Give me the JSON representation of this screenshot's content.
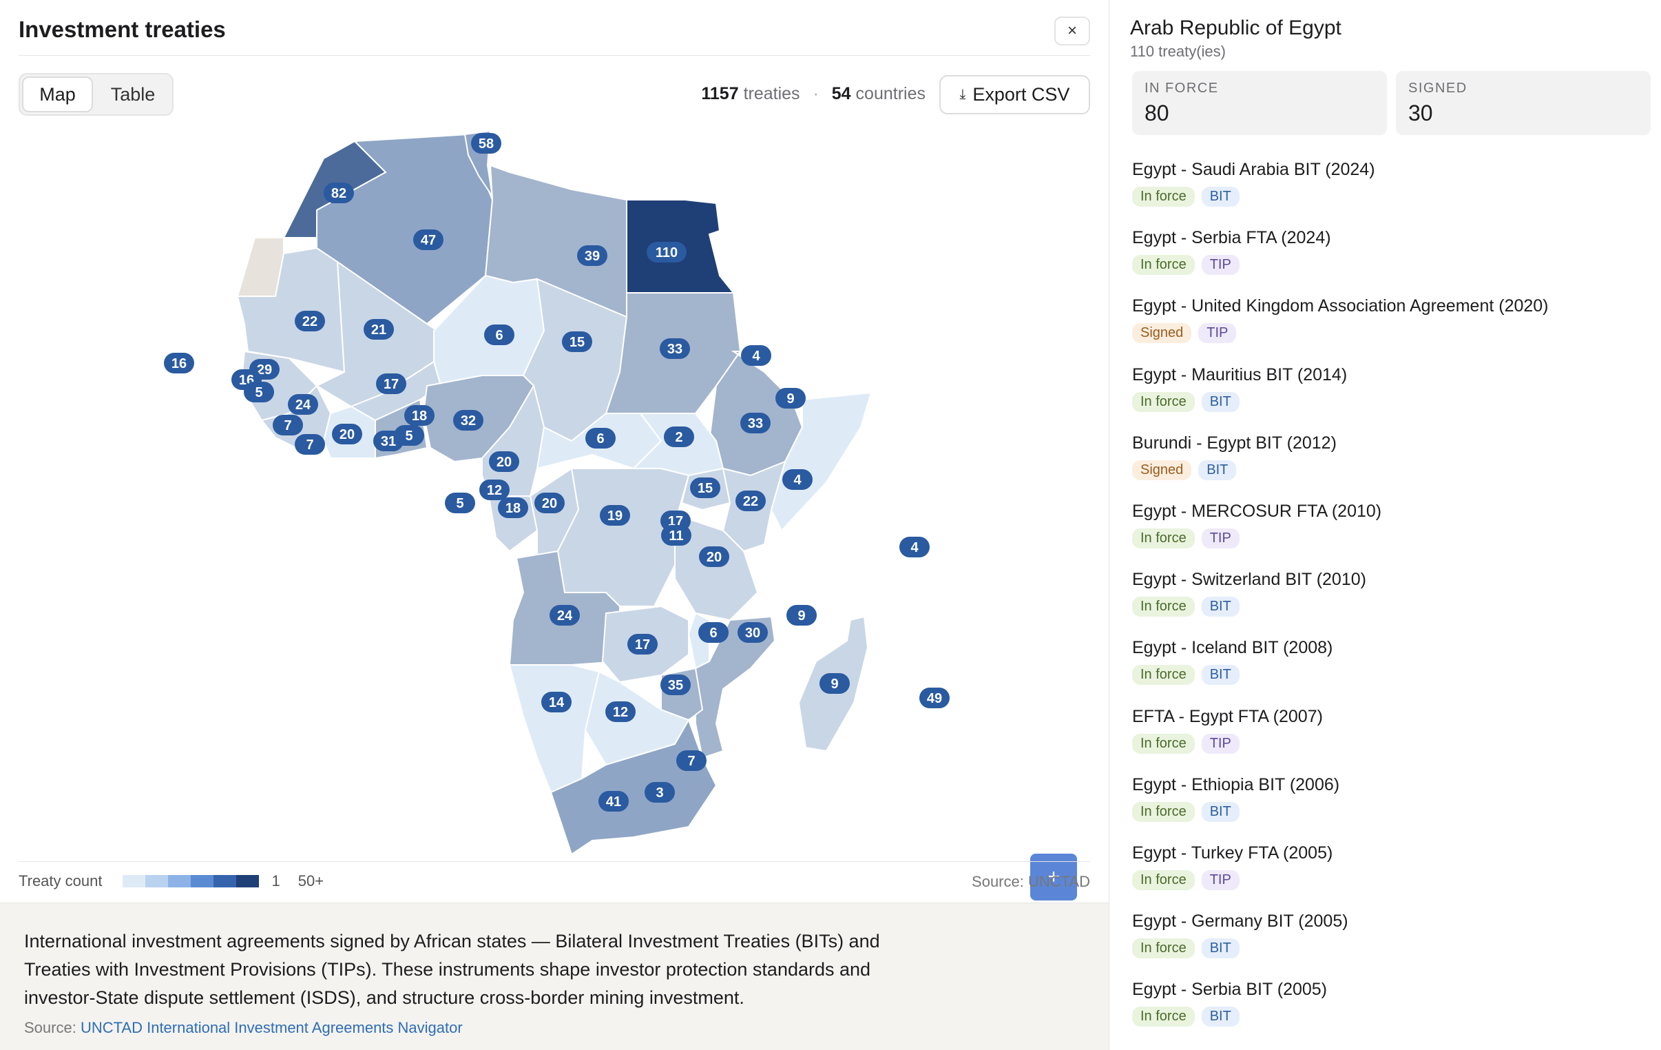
{
  "header": {
    "title": "Investment treaties"
  },
  "view_toggle": {
    "map": "Map",
    "table": "Table"
  },
  "stats": {
    "treaties_count": "1157",
    "treaties_label": "treaties",
    "separator": "·",
    "countries_count": "54",
    "countries_label": "countries"
  },
  "export": {
    "label": "Export CSV",
    "icon": "download-icon"
  },
  "map": {
    "zoom_in": "+",
    "zoom_out": "−",
    "labels": [
      {
        "id": "morocco",
        "value": "82"
      },
      {
        "id": "algeria",
        "value": "47"
      },
      {
        "id": "tunisia",
        "value": "58"
      },
      {
        "id": "libya",
        "value": "39"
      },
      {
        "id": "egypt",
        "value": "110"
      },
      {
        "id": "mauritania",
        "value": "22"
      },
      {
        "id": "mali",
        "value": "21"
      },
      {
        "id": "niger",
        "value": "6"
      },
      {
        "id": "chad",
        "value": "15"
      },
      {
        "id": "sudan",
        "value": "33"
      },
      {
        "id": "eritrea",
        "value": "4"
      },
      {
        "id": "cabo-verde",
        "value": "16"
      },
      {
        "id": "senegal",
        "value": "29"
      },
      {
        "id": "gambia",
        "value": "16"
      },
      {
        "id": "guinea-bissau",
        "value": "5"
      },
      {
        "id": "burkina-faso",
        "value": "17"
      },
      {
        "id": "guinea",
        "value": "24"
      },
      {
        "id": "sierra-leone",
        "value": "7"
      },
      {
        "id": "liberia",
        "value": "7"
      },
      {
        "id": "cote-divoire",
        "value": "20"
      },
      {
        "id": "ghana",
        "value": "31"
      },
      {
        "id": "togo",
        "value": "5"
      },
      {
        "id": "benin",
        "value": "18"
      },
      {
        "id": "nigeria",
        "value": "32"
      },
      {
        "id": "djibouti",
        "value": "9"
      },
      {
        "id": "ethiopia",
        "value": "33"
      },
      {
        "id": "central-african-republic",
        "value": "6"
      },
      {
        "id": "south-sudan",
        "value": "2"
      },
      {
        "id": "cameroon",
        "value": "20"
      },
      {
        "id": "somalia",
        "value": "4"
      },
      {
        "id": "uganda",
        "value": "15"
      },
      {
        "id": "kenya",
        "value": "22"
      },
      {
        "id": "sao-tome",
        "value": "5"
      },
      {
        "id": "equatorial-guinea",
        "value": "12"
      },
      {
        "id": "gabon",
        "value": "18"
      },
      {
        "id": "congo",
        "value": "20"
      },
      {
        "id": "dr-congo",
        "value": "19"
      },
      {
        "id": "rwanda",
        "value": "17"
      },
      {
        "id": "burundi",
        "value": "11"
      },
      {
        "id": "seychelles",
        "value": "4"
      },
      {
        "id": "tanzania",
        "value": "20"
      },
      {
        "id": "angola",
        "value": "24"
      },
      {
        "id": "comoros",
        "value": "9"
      },
      {
        "id": "malawi",
        "value": "6"
      },
      {
        "id": "mozambique",
        "value": "30"
      },
      {
        "id": "zambia",
        "value": "17"
      },
      {
        "id": "zimbabwe",
        "value": "35"
      },
      {
        "id": "madagascar",
        "value": "9"
      },
      {
        "id": "mauritius",
        "value": "49"
      },
      {
        "id": "namibia",
        "value": "14"
      },
      {
        "id": "botswana",
        "value": "12"
      },
      {
        "id": "eswatini",
        "value": "7"
      },
      {
        "id": "lesotho",
        "value": "3"
      },
      {
        "id": "south-africa",
        "value": "41"
      }
    ]
  },
  "legend": {
    "label": "Treaty count",
    "min": "1",
    "max": "50+",
    "ramp": [
      "#deebf7",
      "#b9d2f0",
      "#8db3e6",
      "#5b8bd2",
      "#3564ad",
      "#1f3f77"
    ],
    "source": "Source: UNCTAD"
  },
  "footer": {
    "description": "International investment agreements signed by African states — Bilateral Investment Treaties (BITs) and Treaties with Investment Provisions (TIPs). These instruments shape investor protection standards and investor-State dispute settlement (ISDS), and structure cross-border mining investment.",
    "source_prefix": "Source:",
    "source_link": "UNCTAD International Investment Agreements Navigator"
  },
  "panel": {
    "title": "Arab Republic of Egypt",
    "subtitle": "110 treaty(ies)",
    "close": "×",
    "in_force_label": "IN FORCE",
    "in_force_value": "80",
    "signed_label": "SIGNED",
    "signed_value": "30",
    "treaties": [
      {
        "name": "Egypt - Saudi Arabia BIT (2024)",
        "status": "In force",
        "type": "BIT"
      },
      {
        "name": "Egypt - Serbia FTA (2024)",
        "status": "In force",
        "type": "TIP"
      },
      {
        "name": "Egypt - United Kingdom Association Agreement (2020)",
        "status": "Signed",
        "type": "TIP"
      },
      {
        "name": "Egypt - Mauritius BIT (2014)",
        "status": "In force",
        "type": "BIT"
      },
      {
        "name": "Burundi - Egypt BIT (2012)",
        "status": "Signed",
        "type": "BIT"
      },
      {
        "name": "Egypt - MERCOSUR FTA (2010)",
        "status": "In force",
        "type": "TIP"
      },
      {
        "name": "Egypt - Switzerland BIT (2010)",
        "status": "In force",
        "type": "BIT"
      },
      {
        "name": "Egypt - Iceland BIT (2008)",
        "status": "In force",
        "type": "BIT"
      },
      {
        "name": "EFTA - Egypt FTA (2007)",
        "status": "In force",
        "type": "TIP"
      },
      {
        "name": "Egypt - Ethiopia BIT (2006)",
        "status": "In force",
        "type": "BIT"
      },
      {
        "name": "Egypt - Turkey FTA (2005)",
        "status": "In force",
        "type": "TIP"
      },
      {
        "name": "Egypt - Germany BIT (2005)",
        "status": "In force",
        "type": "BIT"
      },
      {
        "name": "Egypt - Serbia BIT (2005)",
        "status": "In force",
        "type": "BIT"
      }
    ]
  }
}
